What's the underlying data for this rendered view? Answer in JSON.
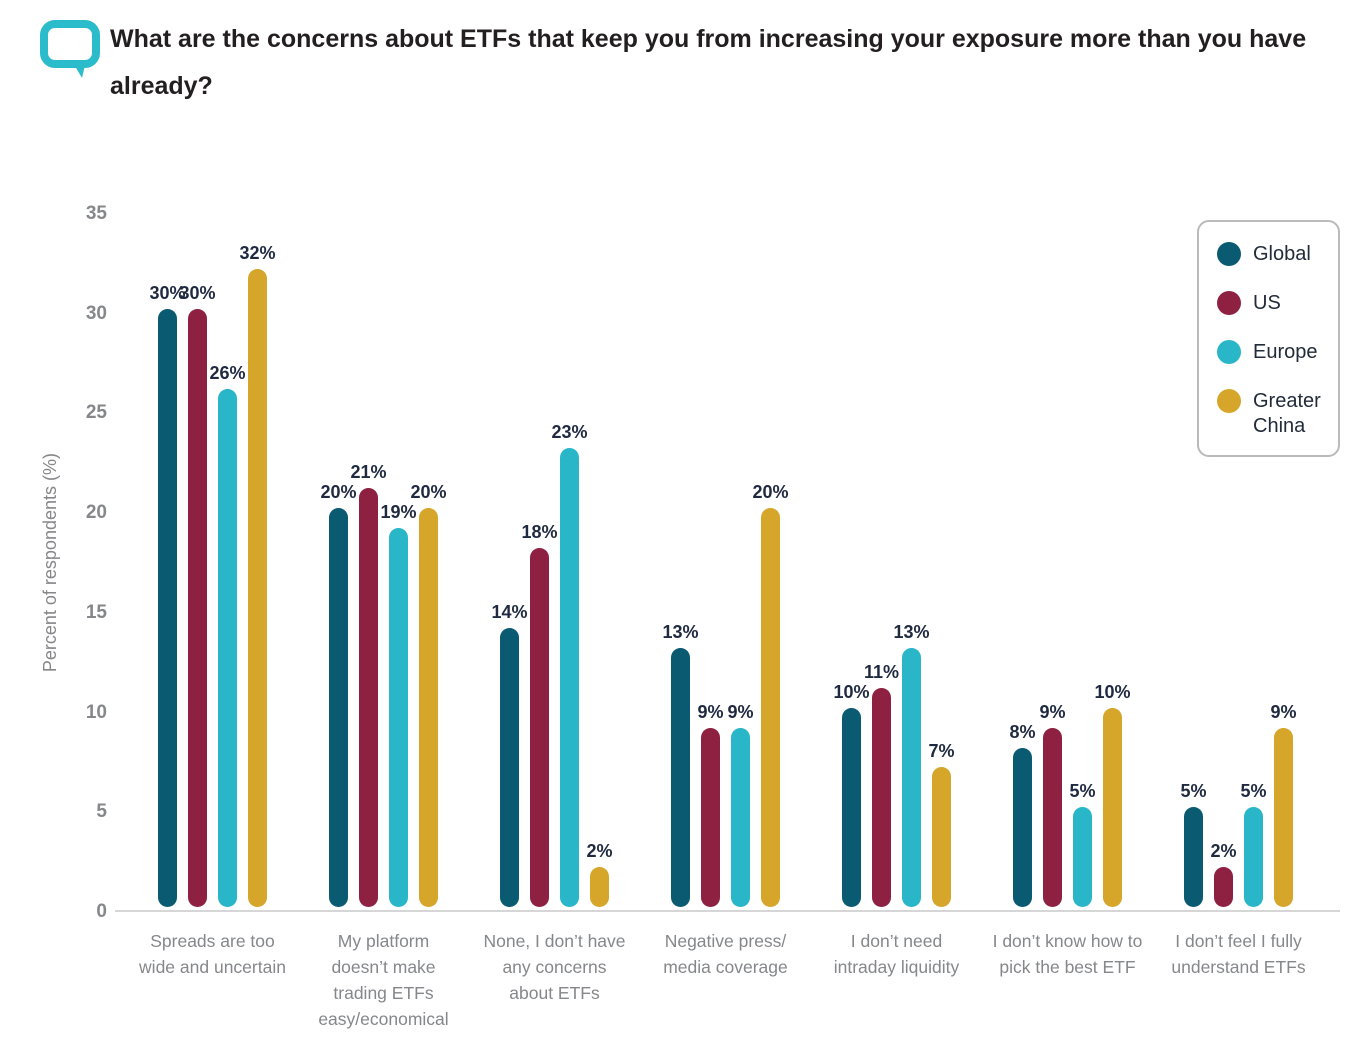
{
  "colors": {
    "accent_bubble": "#2bbccc",
    "axis_text": "#85878a",
    "value_label": "#1f2940",
    "axis_line": "#d6d6d6"
  },
  "chart_data": {
    "type": "bar",
    "title": "What are the concerns about ETFs that keep you from increasing your exposure more than you have already?",
    "xlabel": "",
    "ylabel": "Percent of respondents (%)",
    "ylim": [
      0,
      35
    ],
    "yticks": [
      0,
      5,
      10,
      15,
      20,
      25,
      30,
      35
    ],
    "grid": false,
    "legend_position": "top-right",
    "value_suffix": "%",
    "categories": [
      "Spreads are too wide and uncertain",
      "My platform doesn’t make trading ETFs easy/economical",
      "None, I don’t have any concerns about ETFs",
      "Negative press/media coverage",
      "I don’t need intraday liquidity",
      "I don’t know how to pick the best ETF",
      "I don’t feel I fully understand ETFs"
    ],
    "category_lines": [
      [
        "Spreads are too",
        "wide and uncertain"
      ],
      [
        "My platform",
        "doesn’t make",
        "trading ETFs",
        "easy/economical"
      ],
      [
        "None, I don’t have",
        "any concerns",
        "about ETFs"
      ],
      [
        "Negative press/",
        "media coverage"
      ],
      [
        "I don’t need",
        "intraday liquidity"
      ],
      [
        "I don’t know how to",
        "pick the best ETF"
      ],
      [
        "I don’t feel I fully",
        "understand ETFs"
      ]
    ],
    "series": [
      {
        "name": "Global",
        "color": "#0a5a72",
        "values": [
          30,
          20,
          14,
          13,
          10,
          8,
          5
        ]
      },
      {
        "name": "US",
        "color": "#8e2142",
        "values": [
          30,
          21,
          18,
          9,
          11,
          9,
          2
        ]
      },
      {
        "name": "Europe",
        "color": "#29b6c8",
        "values": [
          26,
          19,
          23,
          9,
          13,
          5,
          5
        ]
      },
      {
        "name": "Greater China",
        "color": "#d6a62b",
        "values": [
          32,
          20,
          2,
          20,
          7,
          10,
          9
        ]
      }
    ]
  }
}
